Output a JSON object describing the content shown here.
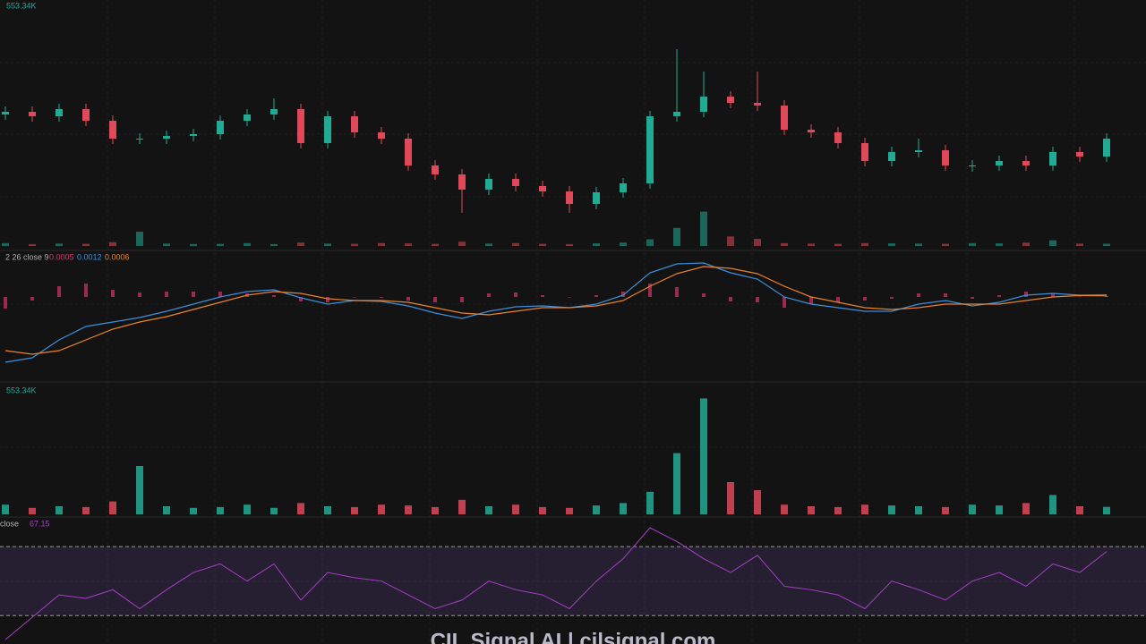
{
  "chart_data": [
    {
      "type": "candlestick",
      "open": [
        172,
        175,
        170,
        178,
        165,
        145,
        145,
        148,
        150,
        165,
        172,
        178,
        140,
        170,
        152,
        145,
        115,
        105,
        88,
        100,
        92,
        86,
        72,
        85,
        95,
        170,
        175,
        192,
        185,
        182,
        155,
        152,
        140,
        120,
        130,
        132,
        115,
        115,
        120,
        115,
        130,
        125
      ],
      "high": [
        181,
        181,
        184,
        184,
        171,
        151,
        154,
        156,
        171,
        178,
        190,
        184,
        176,
        176,
        158,
        151,
        121,
        111,
        106,
        106,
        98,
        92,
        91,
        101,
        176,
        245,
        220,
        198,
        220,
        188,
        161,
        158,
        146,
        136,
        145,
        138,
        121,
        126,
        126,
        136,
        136,
        151
      ],
      "low": [
        166,
        164,
        164,
        159,
        139,
        139,
        139,
        142,
        144,
        159,
        166,
        134,
        134,
        146,
        139,
        109,
        99,
        62,
        82,
        86,
        80,
        62,
        66,
        79,
        89,
        164,
        169,
        179,
        176,
        149,
        146,
        134,
        114,
        114,
        124,
        109,
        108,
        109,
        109,
        109,
        119,
        119
      ],
      "close": [
        175,
        170,
        178,
        165,
        145,
        145,
        148,
        150,
        165,
        172,
        178,
        140,
        170,
        152,
        145,
        115,
        105,
        88,
        100,
        92,
        86,
        72,
        85,
        95,
        170,
        175,
        192,
        185,
        182,
        155,
        152,
        140,
        120,
        130,
        132,
        115,
        115,
        120,
        115,
        130,
        125,
        145
      ],
      "up_color": "#22ab94",
      "down_color": "#e0495a",
      "ylim": [
        25,
        300
      ]
    },
    {
      "type": "macd",
      "label": "2 26 close 9",
      "series": [
        {
          "name": "histogram",
          "color": "#d6336c",
          "values": [
            -0.0065,
            -0.002,
            0.006,
            0.0075,
            0.004,
            0.0025,
            0.003,
            0.003,
            0.003,
            0.002,
            0.001,
            -0.0025,
            -0.003,
            0,
            -0.0005,
            -0.002,
            -0.003,
            -0.003,
            0.002,
            0.0025,
            0.001,
            0,
            0.001,
            0.003,
            0.0075,
            0.0055,
            0.002,
            -0.0025,
            -0.003,
            -0.006,
            -0.004,
            -0.003,
            -0.002,
            -0.001,
            0.002,
            0.002,
            -0.001,
            0.001,
            0.003,
            0.002,
            0.0002,
            0.0005
          ]
        },
        {
          "name": "macd",
          "color": "#3d8fdc",
          "values": [
            -0.0365,
            -0.034,
            -0.024,
            -0.0165,
            -0.014,
            -0.0115,
            -0.008,
            -0.004,
            0,
            0.003,
            0.004,
            -0.0005,
            -0.004,
            -0.002,
            -0.0025,
            -0.005,
            -0.009,
            -0.012,
            -0.008,
            -0.0055,
            -0.005,
            -0.006,
            -0.004,
            0.001,
            0.0135,
            0.0185,
            0.019,
            0.0135,
            0.01,
            0,
            -0.004,
            -0.006,
            -0.008,
            -0.008,
            -0.004,
            -0.002,
            -0.005,
            -0.003,
            0.001,
            0.002,
            0.001,
            0.0012
          ]
        },
        {
          "name": "signal",
          "color": "#e8832a",
          "values": [
            -0.03,
            -0.032,
            -0.03,
            -0.024,
            -0.018,
            -0.014,
            -0.011,
            -0.007,
            -0.003,
            0.001,
            0.003,
            0.002,
            -0.001,
            -0.002,
            -0.002,
            -0.003,
            -0.006,
            -0.009,
            -0.01,
            -0.008,
            -0.006,
            -0.006,
            -0.005,
            -0.002,
            0.006,
            0.013,
            0.017,
            0.016,
            0.013,
            0.006,
            0,
            -0.003,
            -0.006,
            -0.007,
            -0.006,
            -0.004,
            -0.004,
            -0.004,
            -0.002,
            0,
            0.0008,
            0.0006
          ]
        }
      ],
      "ylim": [
        -0.044,
        0.0235
      ]
    },
    {
      "type": "bar",
      "last_label": "553.34K",
      "values": [
        720,
        480,
        600,
        540,
        960,
        3600,
        600,
        480,
        540,
        720,
        480,
        840,
        600,
        540,
        720,
        660,
        540,
        1080,
        600,
        720,
        540,
        480,
        660,
        840,
        1680,
        4560,
        8640,
        2400,
        1800,
        720,
        600,
        540,
        720,
        660,
        600,
        540,
        720,
        660,
        840,
        1440,
        600,
        553.34
      ],
      "ylim": [
        0,
        9000
      ]
    },
    {
      "type": "line",
      "label": "close",
      "color": "#a63fc4",
      "values": [
        16,
        29,
        42,
        40,
        45,
        34,
        45,
        55,
        60,
        50,
        60,
        39,
        55,
        52,
        50,
        42,
        34,
        39,
        50,
        45,
        42,
        34,
        50,
        63,
        81,
        73,
        63,
        55,
        65,
        47,
        45,
        42,
        34,
        50,
        45,
        39,
        50,
        55,
        47,
        60,
        55,
        67.15
      ],
      "levels": [
        30,
        70
      ],
      "ylim": [
        14,
        81
      ]
    }
  ],
  "watermark": "CIL Signal AI | cilsignal.com"
}
